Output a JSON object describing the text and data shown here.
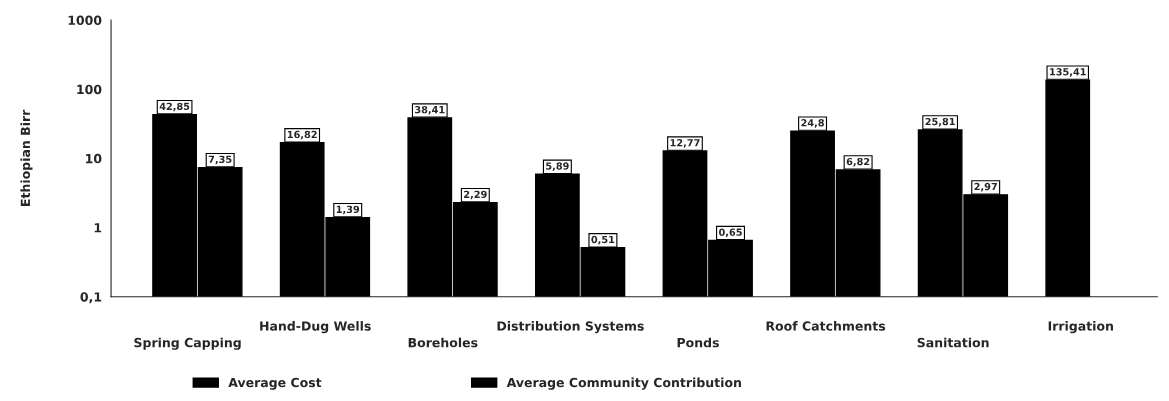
{
  "chart_data": {
    "type": "bar",
    "ylabel": "Ethiopian Birr",
    "log": true,
    "ylim": [
      0.1,
      1000
    ],
    "yticks": [
      {
        "value": 0.1,
        "label": "0,1"
      },
      1,
      10,
      100,
      1000
    ],
    "grid": false,
    "legend": "bottom",
    "categories": [
      "Spring Capping",
      "Hand-Dug Wells",
      "Boreholes",
      "Distribution Systems",
      "Ponds",
      "Roof Catchments",
      "Sanitation",
      "Irrigation"
    ],
    "series": [
      {
        "name": "Average Cost",
        "color": "#000000",
        "values": [
          42.85,
          16.82,
          38.41,
          5.89,
          12.77,
          24.8,
          25.81,
          135.41
        ],
        "value_labels": [
          "42,85",
          "16,82",
          "38,41",
          "5,89",
          "12,77",
          "24,8",
          "25,81",
          "135,41"
        ]
      },
      {
        "name": "Average Community Contribution",
        "color": "#000000",
        "values": [
          7.35,
          1.39,
          2.29,
          0.51,
          0.65,
          6.82,
          2.97,
          null
        ],
        "value_labels": [
          "7,35",
          "1,39",
          "2,29",
          "0,51",
          "0,65",
          "6,82",
          "2,97",
          null
        ]
      }
    ]
  }
}
